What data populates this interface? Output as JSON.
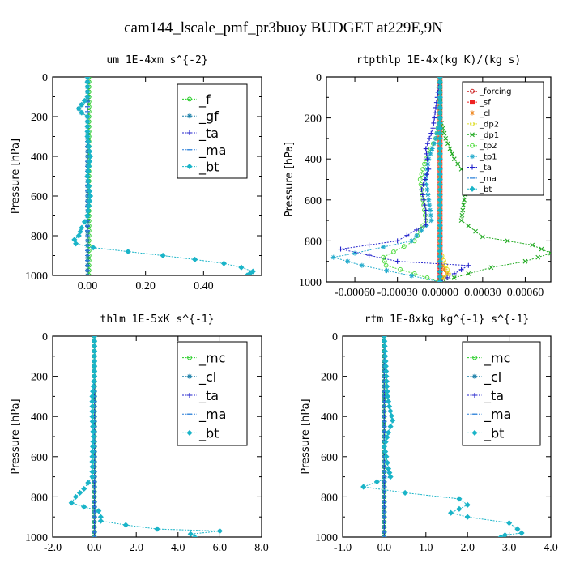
{
  "title": "cam144_lscale_pmf_pr3buoy  BUDGET at229E,9N",
  "chart_data": [
    {
      "type": "line",
      "title": "um  1E-4xm s^{-2}",
      "ylabel": "Pressure [hPa]",
      "ylim": [
        1000,
        0
      ],
      "xlim": [
        -0.12,
        0.6
      ],
      "xticks": [
        0.0,
        0.2,
        0.4
      ],
      "xtick_labels": [
        "0.00",
        "0.20",
        "0.40"
      ],
      "yticks": [
        0,
        200,
        400,
        600,
        800,
        1000
      ],
      "legend_location": "top-right",
      "series": [
        {
          "name": "_f",
          "color": "#22cc22",
          "marker": "circle",
          "points": [
            [
              0.005,
              0
            ],
            [
              0.005,
              100
            ],
            [
              0.005,
              200
            ],
            [
              0.005,
              300
            ],
            [
              0.005,
              400
            ],
            [
              0.005,
              500
            ],
            [
              0.005,
              600
            ],
            [
              0.005,
              700
            ],
            [
              0.005,
              800
            ],
            [
              0.005,
              900
            ],
            [
              0.005,
              1000
            ]
          ]
        },
        {
          "name": "_gf",
          "color": "#1a7fa8",
          "marker": "star",
          "points": [
            [
              0,
              0
            ],
            [
              0,
              100
            ],
            [
              0,
              120
            ],
            [
              -0.02,
              140
            ],
            [
              -0.03,
              160
            ],
            [
              -0.02,
              180
            ],
            [
              0,
              200
            ],
            [
              0,
              300
            ],
            [
              0,
              400
            ],
            [
              0,
              500
            ],
            [
              0,
              600
            ],
            [
              0,
              700
            ],
            [
              0,
              780
            ],
            [
              0,
              800
            ],
            [
              0,
              850
            ],
            [
              0,
              900
            ],
            [
              0,
              950
            ],
            [
              0,
              1000
            ]
          ]
        },
        {
          "name": "_ta",
          "color": "#2222cc",
          "marker": "plus",
          "points": [
            [
              0,
              0
            ],
            [
              0,
              1000
            ]
          ]
        },
        {
          "name": "_ma",
          "color": "#2a7fd8",
          "marker": "dash",
          "points": [
            [
              0,
              0
            ],
            [
              0,
              1000
            ]
          ]
        },
        {
          "name": "_bt",
          "color": "#1ab4c8",
          "marker": "diamond",
          "points": [
            [
              0,
              0
            ],
            [
              0,
              100
            ],
            [
              -0.02,
              140
            ],
            [
              -0.03,
              160
            ],
            [
              -0.02,
              180
            ],
            [
              0,
              200
            ],
            [
              0,
              300
            ],
            [
              0.01,
              400
            ],
            [
              0,
              500
            ],
            [
              0.01,
              600
            ],
            [
              0,
              700
            ],
            [
              -0.02,
              760
            ],
            [
              -0.03,
              800
            ],
            [
              -0.045,
              820
            ],
            [
              -0.04,
              840
            ],
            [
              0.02,
              860
            ],
            [
              0.14,
              880
            ],
            [
              0.26,
              900
            ],
            [
              0.37,
              920
            ],
            [
              0.47,
              940
            ],
            [
              0.53,
              960
            ],
            [
              0.57,
              980
            ],
            [
              0.56,
              990
            ],
            [
              0.55,
              1000
            ]
          ]
        }
      ]
    },
    {
      "type": "line",
      "title": "rtpthlp  1E-4x(kg K)/(kg s)",
      "ylabel": "Pressure [hPa]",
      "ylim": [
        1000,
        0
      ],
      "xlim": [
        -0.0008,
        0.00078
      ],
      "xticks": [
        -0.0006,
        -0.0003,
        0.0,
        0.0003,
        0.0006
      ],
      "xtick_labels": [
        "-0.00060",
        "-0.00030",
        "0.00000",
        "0.00030",
        "0.00060"
      ],
      "yticks": [
        0,
        200,
        400,
        600,
        800,
        1000
      ],
      "legend_location": "top-right",
      "series": [
        {
          "name": "_forcing",
          "color": "#cc2222",
          "marker": "circle",
          "points": [
            [
              0,
              0
            ],
            [
              0,
              1000
            ]
          ]
        },
        {
          "name": "_sf",
          "color": "#ee2222",
          "marker": "square",
          "points": [
            [
              0,
              0
            ],
            [
              0,
              100
            ],
            [
              0,
              200
            ],
            [
              0,
              300
            ],
            [
              0,
              400
            ],
            [
              0,
              500
            ],
            [
              0,
              600
            ],
            [
              0,
              700
            ],
            [
              0,
              800
            ],
            [
              0,
              900
            ],
            [
              0,
              1000
            ]
          ]
        },
        {
          "name": "_cl",
          "color": "#ee8822",
          "marker": "star",
          "points": [
            [
              0,
              0
            ],
            [
              0,
              800
            ],
            [
              0,
              900
            ],
            [
              3e-05,
              940
            ],
            [
              5e-05,
              960
            ],
            [
              2e-05,
              980
            ],
            [
              0,
              1000
            ]
          ]
        },
        {
          "name": "_dp2",
          "color": "#dddd22",
          "marker": "circle",
          "points": [
            [
              0,
              0
            ],
            [
              0,
              850
            ],
            [
              4e-05,
              920
            ],
            [
              6e-05,
              960
            ],
            [
              0,
              1000
            ]
          ]
        },
        {
          "name": "_dp1",
          "color": "#22aa22",
          "marker": "cross",
          "points": [
            [
              0,
              0
            ],
            [
              0,
              200
            ],
            [
              4e-05,
              300
            ],
            [
              0.0001,
              400
            ],
            [
              0.0002,
              500
            ],
            [
              0.00017,
              600
            ],
            [
              0.00015,
              700
            ],
            [
              0.0003,
              780
            ],
            [
              0.00065,
              820
            ],
            [
              0.00078,
              860
            ],
            [
              0.0006,
              900
            ],
            [
              0.00036,
              930
            ],
            [
              0.0002,
              960
            ],
            [
              0,
              1000
            ]
          ]
        },
        {
          "name": "_tp2",
          "color": "#55dd44",
          "marker": "circle",
          "points": [
            [
              0,
              0
            ],
            [
              0,
              200
            ],
            [
              -3e-05,
              300
            ],
            [
              -0.0001,
              400
            ],
            [
              -0.00014,
              500
            ],
            [
              -0.00012,
              600
            ],
            [
              -0.0001,
              700
            ],
            [
              -0.00018,
              800
            ],
            [
              -0.0004,
              880
            ],
            [
              -0.00038,
              920
            ],
            [
              -0.00018,
              960
            ],
            [
              0,
              1000
            ]
          ]
        },
        {
          "name": "_tp1",
          "color": "#22aacc",
          "marker": "star",
          "points": [
            [
              0,
              0
            ],
            [
              0,
              200
            ],
            [
              -3e-05,
              300
            ],
            [
              -8e-05,
              400
            ],
            [
              -0.0001,
              500
            ],
            [
              -8e-05,
              600
            ],
            [
              -6e-05,
              700
            ],
            [
              -0.0002,
              800
            ],
            [
              -0.0006,
              860
            ],
            [
              -0.00075,
              880
            ],
            [
              -0.00055,
              920
            ],
            [
              -0.0002,
              970
            ],
            [
              0,
              1000
            ]
          ]
        },
        {
          "name": "_ta",
          "color": "#2222cc",
          "marker": "plus",
          "points": [
            [
              0,
              0
            ],
            [
              -5e-05,
              250
            ],
            [
              -0.0001,
              350
            ],
            [
              -8e-05,
              450
            ],
            [
              -0.00013,
              550
            ],
            [
              -0.0001,
              650
            ],
            [
              -0.0001,
              720
            ],
            [
              -0.0003,
              800
            ],
            [
              -0.0007,
              840
            ],
            [
              -0.0003,
              900
            ],
            [
              0.0002,
              920
            ],
            [
              0.0001,
              960
            ],
            [
              0,
              1000
            ]
          ]
        },
        {
          "name": "_ma",
          "color": "#2a7fd8",
          "marker": "dash",
          "points": [
            [
              0,
              0
            ],
            [
              0,
              1000
            ]
          ]
        },
        {
          "name": "_bt",
          "color": "#1ab4c8",
          "marker": "diamond",
          "points": [
            [
              0,
              0
            ],
            [
              0,
              1000
            ]
          ]
        }
      ]
    },
    {
      "type": "line",
      "title": "thlm  1E-5xK s^{-1}",
      "ylabel": "Pressure [hPa]",
      "ylim": [
        1000,
        0
      ],
      "xlim": [
        -2.0,
        8.0
      ],
      "xticks": [
        -2.0,
        0.0,
        2.0,
        4.0,
        6.0,
        8.0
      ],
      "xtick_labels": [
        "-2.0",
        "0.0",
        "2.0",
        "4.0",
        "6.0",
        "8.0"
      ],
      "yticks": [
        0,
        200,
        400,
        600,
        800,
        1000
      ],
      "legend_location": "top-right",
      "series": [
        {
          "name": "_mc",
          "color": "#22cc22",
          "marker": "circle",
          "points": [
            [
              0,
              0
            ],
            [
              0,
              100
            ],
            [
              0,
              200
            ],
            [
              0,
              300
            ],
            [
              0,
              400
            ],
            [
              0,
              500
            ],
            [
              0,
              600
            ],
            [
              0,
              700
            ],
            [
              0,
              800
            ],
            [
              0,
              900
            ],
            [
              0,
              1000
            ]
          ]
        },
        {
          "name": "_cl",
          "color": "#1a7fa8",
          "marker": "star",
          "points": [
            [
              0,
              0
            ],
            [
              0,
              1000
            ]
          ]
        },
        {
          "name": "_ta",
          "color": "#2222cc",
          "marker": "plus",
          "points": [
            [
              0,
              0
            ],
            [
              0,
              1000
            ]
          ]
        },
        {
          "name": "_ma",
          "color": "#2a7fd8",
          "marker": "dash",
          "points": [
            [
              0,
              0
            ],
            [
              0,
              1000
            ]
          ]
        },
        {
          "name": "_bt",
          "color": "#1ab4c8",
          "marker": "diamond",
          "points": [
            [
              0,
              0
            ],
            [
              0,
              100
            ],
            [
              0,
              200
            ],
            [
              -0.1,
              300
            ],
            [
              -0.1,
              400
            ],
            [
              -0.05,
              500
            ],
            [
              -0.1,
              600
            ],
            [
              -0.1,
              700
            ],
            [
              -0.5,
              760
            ],
            [
              -0.9,
              800
            ],
            [
              -1.1,
              830
            ],
            [
              -0.5,
              850
            ],
            [
              0.2,
              870
            ],
            [
              0.3,
              900
            ],
            [
              0.3,
              920
            ],
            [
              1.5,
              940
            ],
            [
              3.0,
              960
            ],
            [
              6.0,
              970
            ],
            [
              4.6,
              985
            ],
            [
              4.8,
              1000
            ]
          ]
        }
      ]
    },
    {
      "type": "line",
      "title": "rtm  1E-8xkg kg^{-1} s^{-1}",
      "ylabel": "Pressure [hPa]",
      "ylim": [
        1000,
        0
      ],
      "xlim": [
        -1.0,
        4.0
      ],
      "xticks": [
        -1.0,
        0.0,
        1.0,
        2.0,
        3.0,
        4.0
      ],
      "xtick_labels": [
        "-1.0",
        "0.0",
        "1.0",
        "2.0",
        "3.0",
        "4.0"
      ],
      "yticks": [
        0,
        200,
        400,
        600,
        800,
        1000
      ],
      "legend_location": "top-right",
      "series": [
        {
          "name": "_mc",
          "color": "#22cc22",
          "marker": "circle",
          "points": [
            [
              0,
              0
            ],
            [
              0,
              100
            ],
            [
              0,
              200
            ],
            [
              0,
              300
            ],
            [
              0,
              400
            ],
            [
              0,
              500
            ],
            [
              0,
              600
            ],
            [
              0,
              700
            ],
            [
              0,
              800
            ],
            [
              0,
              900
            ],
            [
              0,
              1000
            ]
          ]
        },
        {
          "name": "_cl",
          "color": "#1a7fa8",
          "marker": "star",
          "points": [
            [
              0,
              0
            ],
            [
              0,
              1000
            ]
          ]
        },
        {
          "name": "_ta",
          "color": "#2222cc",
          "marker": "plus",
          "points": [
            [
              0,
              0
            ],
            [
              0,
              1000
            ]
          ]
        },
        {
          "name": "_ma",
          "color": "#2a7fd8",
          "marker": "dash",
          "points": [
            [
              0,
              0
            ],
            [
              0,
              1000
            ]
          ]
        },
        {
          "name": "_bt",
          "color": "#1ab4c8",
          "marker": "diamond",
          "points": [
            [
              0,
              0
            ],
            [
              0.05,
              200
            ],
            [
              0.08,
              300
            ],
            [
              0.12,
              350
            ],
            [
              0.2,
              420
            ],
            [
              0.1,
              480
            ],
            [
              0.0,
              550
            ],
            [
              0.05,
              600
            ],
            [
              0.1,
              660
            ],
            [
              0.15,
              700
            ],
            [
              -0.5,
              750
            ],
            [
              0.5,
              780
            ],
            [
              1.8,
              810
            ],
            [
              2.0,
              840
            ],
            [
              1.6,
              880
            ],
            [
              2.0,
              900
            ],
            [
              3.0,
              930
            ],
            [
              3.2,
              960
            ],
            [
              3.3,
              980
            ],
            [
              2.9,
              990
            ],
            [
              2.8,
              1000
            ]
          ]
        }
      ]
    }
  ]
}
